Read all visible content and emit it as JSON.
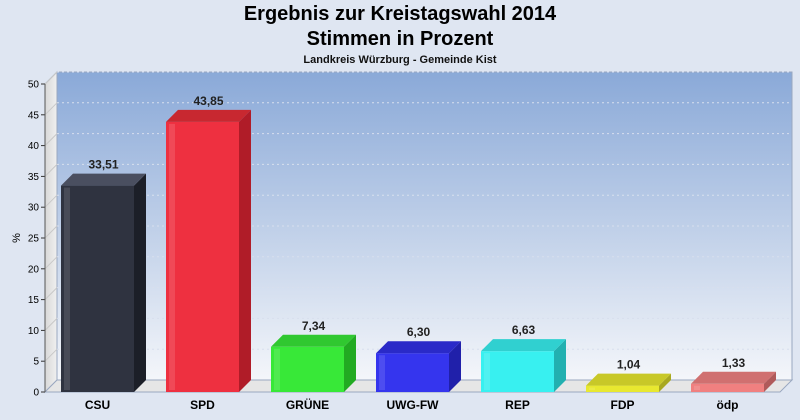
{
  "chart_data": {
    "type": "bar",
    "title": "Ergebnis zur Kreistagswahl 2014",
    "title_line2": "Stimmen in Prozent",
    "subtitle": "Landkreis Würzburg - Gemeinde Kist",
    "ylabel": "%",
    "ylim": [
      0,
      50
    ],
    "yticks": [
      0,
      5,
      10,
      15,
      20,
      25,
      30,
      35,
      40,
      45,
      50
    ],
    "grid": true,
    "categories": [
      "CSU",
      "SPD",
      "GRÜNE",
      "UWG-FW",
      "REP",
      "FDP",
      "ödp"
    ],
    "values": [
      33.51,
      43.85,
      7.34,
      6.3,
      6.63,
      1.04,
      1.33
    ],
    "value_labels": [
      "33,51",
      "43,85",
      "7,34",
      "6,30",
      "6,63",
      "1,04",
      "1,33"
    ],
    "colors": [
      "#2f3340",
      "#ee3040",
      "#38e838",
      "#3535ee",
      "#38f0f0",
      "#e8e830",
      "#f08080"
    ],
    "side_colors": [
      "#1c1f28",
      "#b01c28",
      "#22aa22",
      "#2020aa",
      "#22b0b0",
      "#a8a820",
      "#b05a5a"
    ],
    "top_colors": [
      "#4a4f60",
      "#c82830",
      "#30c830",
      "#2a2ac8",
      "#30d0d0",
      "#c8c828",
      "#d07070"
    ]
  }
}
